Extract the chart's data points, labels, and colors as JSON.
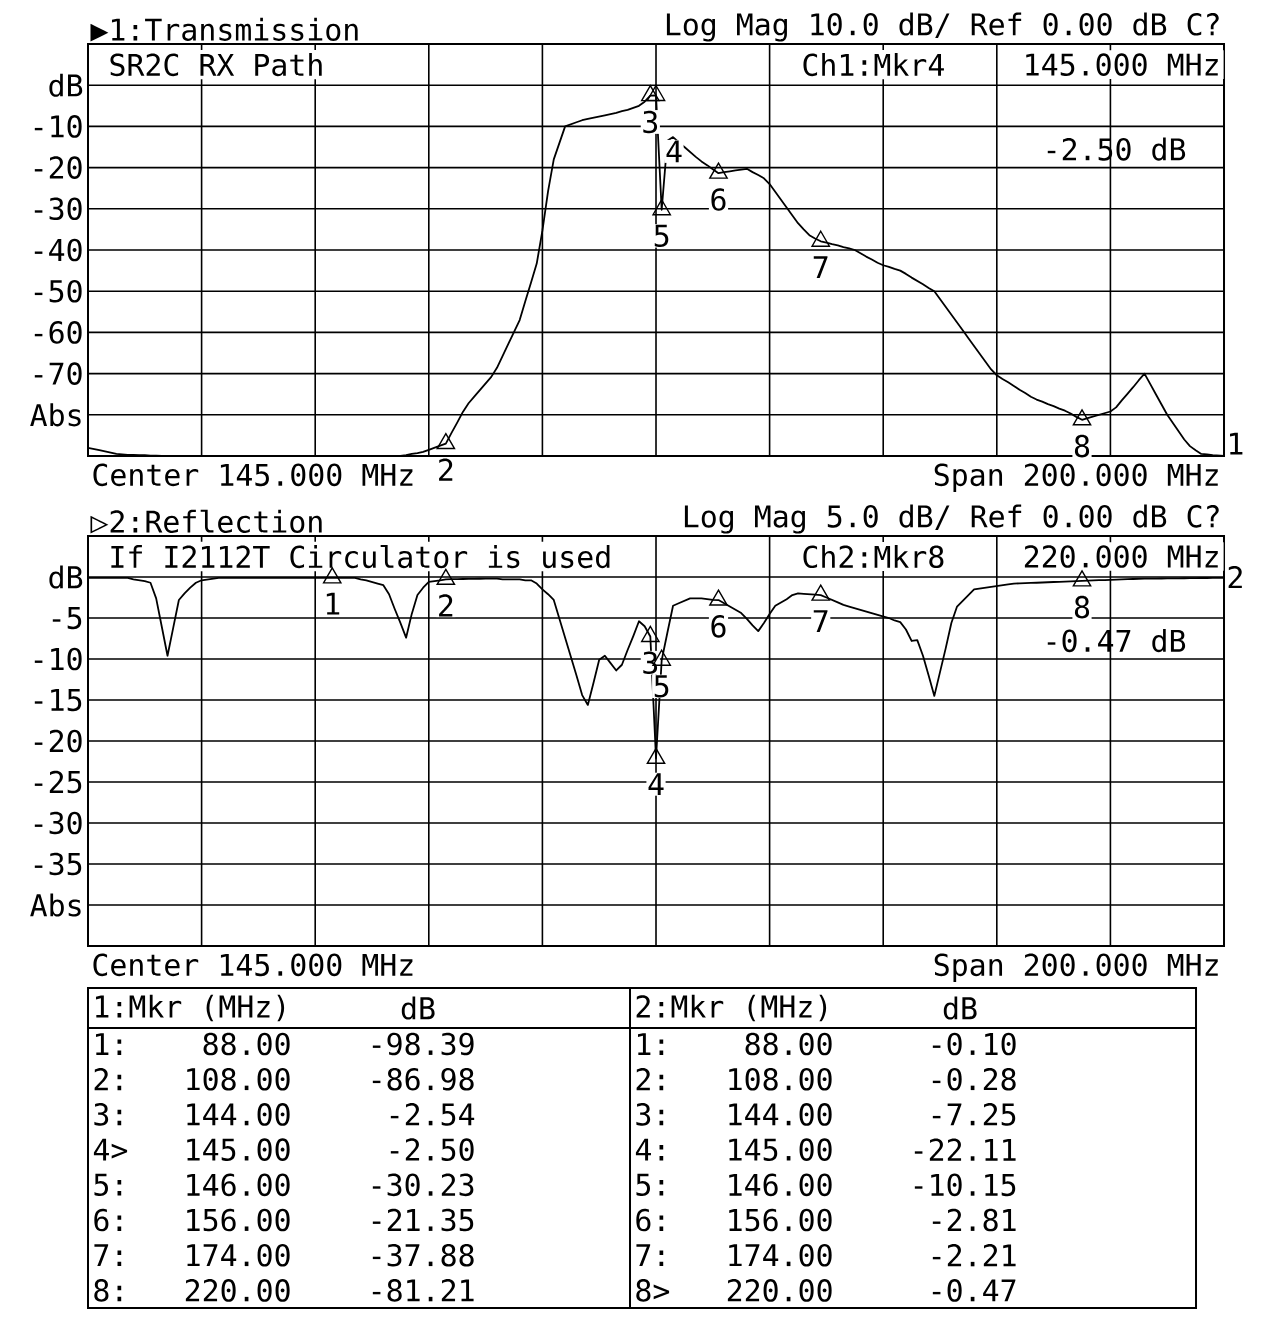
{
  "chart_data": [
    {
      "type": "line",
      "title": "▶1:Transmission",
      "subtitle": "Log Mag  10.0 dB/  Ref  0.00 dB  C?",
      "ylim": [
        -90,
        10
      ],
      "yticks": [
        {
          "value": 10,
          "label": null
        },
        {
          "value": 0,
          "label": "dB"
        },
        {
          "value": -10,
          "label": "-10"
        },
        {
          "value": -20,
          "label": "-20"
        },
        {
          "value": -30,
          "label": "-30"
        },
        {
          "value": -40,
          "label": "-40"
        },
        {
          "value": -50,
          "label": "-50"
        },
        {
          "value": -60,
          "label": "-60"
        },
        {
          "value": -70,
          "label": "-70"
        },
        {
          "value": -80,
          "label": "Abs"
        },
        {
          "value": -90,
          "label": null
        }
      ],
      "tick_labels": "y",
      "grid": true,
      "categories": [
        null,
        null,
        null,
        null,
        null,
        null,
        null,
        null,
        null,
        null,
        null,
        null,
        null,
        null,
        null,
        null,
        null,
        null,
        null,
        null,
        null,
        null,
        null,
        null,
        null,
        null,
        null,
        null,
        null,
        null,
        null,
        null,
        null,
        null,
        null,
        null,
        null,
        null,
        null,
        null,
        null,
        null,
        null,
        null,
        null,
        null,
        null,
        null,
        null,
        null,
        null,
        null,
        null,
        null,
        null,
        null,
        null,
        null,
        null,
        null,
        null,
        null,
        null,
        null,
        null,
        null,
        null,
        null,
        null,
        null,
        null,
        null,
        null,
        null,
        null,
        null,
        null,
        null,
        null,
        null,
        null,
        null,
        null,
        null,
        null,
        null,
        null,
        null,
        null,
        null,
        null,
        null,
        null,
        null,
        null,
        null,
        null,
        null,
        null,
        null,
        null,
        null,
        null,
        null,
        null,
        null,
        null,
        null,
        null,
        null,
        null,
        null,
        null,
        null,
        null,
        null,
        null,
        null,
        null,
        null,
        null,
        null,
        null,
        null,
        null,
        null,
        null,
        null,
        null,
        null,
        null,
        null,
        null,
        null,
        null,
        null,
        null,
        null,
        null,
        null,
        null,
        null,
        null,
        null,
        null,
        null,
        null,
        null,
        null,
        null,
        null,
        null,
        null,
        null,
        null,
        null,
        null,
        null,
        null,
        null,
        null,
        null,
        null,
        null,
        null,
        null,
        null,
        null,
        null,
        null,
        null,
        null,
        null,
        null,
        null,
        null,
        null,
        null,
        null,
        null,
        null,
        null,
        null,
        null,
        null,
        null,
        null,
        null,
        null,
        null,
        null,
        null,
        null,
        null,
        null,
        null,
        null,
        null,
        null,
        null,
        null
      ],
      "series": [
        {
          "color": "#000000",
          "values": [
            -88,
            -88.3,
            -88.6,
            -88.9,
            -89.2,
            -89.5,
            -89.6,
            -89.7,
            -89.7,
            -89.8,
            -89.8,
            -89.9,
            -89.9,
            -90,
            -90,
            -90,
            -90,
            -90,
            -90,
            -90,
            -90,
            -90,
            -90,
            -90,
            -90,
            -90,
            -90,
            -90,
            -90,
            -90,
            -90,
            -90,
            -90,
            -90,
            -90,
            -90,
            -90,
            -90,
            -90,
            -90,
            -90,
            -90,
            -90,
            -90,
            -90,
            -90,
            -90,
            -90,
            -90,
            -90,
            -90,
            -90,
            -90,
            -90,
            -90,
            -90,
            -89.8,
            -89.5,
            -89.3,
            -89,
            -88.5,
            -88,
            -87.5,
            -86.98,
            -84.4,
            -81.9,
            -79.3,
            -77.2,
            -75.6,
            -74,
            -72.4,
            -70.8,
            -68.6,
            -65.7,
            -62.8,
            -59.9,
            -57,
            -52.4,
            -47.9,
            -43.3,
            -35.3,
            -25.7,
            -18,
            -14,
            -10,
            -9.5,
            -9,
            -8.5,
            -8.2,
            -7.9,
            -7.6,
            -7.3,
            -7,
            -6.7,
            -6.3,
            -6,
            -5.5,
            -5,
            -4,
            -2.54,
            -2.5,
            -30.23,
            -13.5,
            -12.6,
            -13.8,
            -15,
            -16.2,
            -17.4,
            -18.5,
            -19.4,
            -20.4,
            -21.35,
            -21.1,
            -20.9,
            -20.7,
            -20.5,
            -20.3,
            -21.1,
            -21.8,
            -22.6,
            -24,
            -25.9,
            -27.8,
            -29.7,
            -31.6,
            -33.5,
            -35,
            -36.4,
            -37.2,
            -37.88,
            -38.2,
            -38.6,
            -38.9,
            -39.3,
            -39.6,
            -40,
            -40.8,
            -41.6,
            -42.3,
            -43.1,
            -43.7,
            -44.1,
            -44.6,
            -45,
            -45.8,
            -46.7,
            -47.5,
            -48.3,
            -49.2,
            -50,
            -51.9,
            -53.8,
            -55.7,
            -57.6,
            -59.5,
            -61.4,
            -63.3,
            -65.2,
            -67.1,
            -69,
            -70.4,
            -71.3,
            -72.1,
            -73,
            -73.9,
            -74.7,
            -75.6,
            -76.3,
            -76.8,
            -77.4,
            -77.9,
            -78.5,
            -79,
            -79.7,
            -80.5,
            -81.21,
            -80.8,
            -80.4,
            -80,
            -79.6,
            -79.2,
            -78.2,
            -76.5,
            -74.9,
            -73.3,
            -71.6,
            -70,
            -72.5,
            -75,
            -77.5,
            -80,
            -82,
            -84,
            -86,
            -87.6,
            -88.6,
            -89.5,
            -89.6,
            -89.8,
            -89.9,
            -90
          ]
        },
        {
          "type": "scatter",
          "marker": "triangle",
          "color": "#000000",
          "values": [
            null,
            null,
            null,
            null,
            null,
            null,
            null,
            null,
            null,
            null,
            null,
            null,
            null,
            null,
            null,
            null,
            null,
            null,
            null,
            null,
            null,
            null,
            null,
            null,
            null,
            null,
            null,
            null,
            null,
            null,
            null,
            null,
            null,
            null,
            null,
            null,
            null,
            null,
            null,
            null,
            null,
            null,
            null,
            null,
            null,
            null,
            null,
            null,
            null,
            null,
            null,
            null,
            null,
            null,
            null,
            null,
            null,
            null,
            null,
            null,
            null,
            null,
            null,
            -86.98,
            null,
            null,
            null,
            null,
            null,
            null,
            null,
            null,
            null,
            null,
            null,
            null,
            null,
            null,
            null,
            null,
            null,
            null,
            null,
            null,
            null,
            null,
            null,
            null,
            null,
            null,
            null,
            null,
            null,
            null,
            null,
            null,
            null,
            null,
            null,
            -2.54,
            -2.5,
            -30.23,
            null,
            null,
            null,
            null,
            null,
            null,
            null,
            null,
            null,
            -21.35,
            null,
            null,
            null,
            null,
            null,
            null,
            null,
            null,
            null,
            null,
            null,
            null,
            null,
            null,
            null,
            null,
            null,
            -37.88,
            null,
            null,
            null,
            null,
            null,
            null,
            null,
            null,
            null,
            null,
            null,
            null,
            null,
            null,
            null,
            null,
            null,
            null,
            null,
            null,
            null,
            null,
            null,
            null,
            null,
            null,
            null,
            null,
            null,
            null,
            null,
            null,
            null,
            null,
            null,
            null,
            null,
            null,
            null,
            null,
            null,
            null,
            null,
            null,
            null,
            -81.21,
            null,
            null,
            null,
            null,
            null,
            null,
            null,
            null,
            null,
            null,
            null,
            null,
            null,
            null,
            null,
            null,
            null,
            null,
            null,
            null,
            null,
            null,
            null,
            null,
            null
          ]
        }
      ],
      "annotations": [
        "SR2C RX Path",
        "Ch1:Mkr4",
        "145.000 MHz",
        "-2.50 dB",
        "Center 145.000 MHz",
        "Span 200.000 MHz",
        "1",
        "2",
        "3",
        "4",
        "5",
        "6",
        "7",
        "8"
      ]
    },
    {
      "type": "line",
      "title": "▷2:Reflection",
      "subtitle": "Log Mag  5.0 dB/  Ref  0.00 dB  C?",
      "ylim": [
        -45,
        5
      ],
      "yticks": [
        {
          "value": 5,
          "label": null
        },
        {
          "value": 0,
          "label": "dB"
        },
        {
          "value": -5,
          "label": "-5"
        },
        {
          "value": -10,
          "label": "-10"
        },
        {
          "value": -15,
          "label": "-15"
        },
        {
          "value": -20,
          "label": "-20"
        },
        {
          "value": -25,
          "label": "-25"
        },
        {
          "value": -30,
          "label": "-30"
        },
        {
          "value": -35,
          "label": "-35"
        },
        {
          "value": -40,
          "label": "Abs"
        },
        {
          "value": -45,
          "label": null
        }
      ],
      "tick_labels": "y",
      "grid": true,
      "categories": [
        null,
        null,
        null,
        null,
        null,
        null,
        null,
        null,
        null,
        null,
        null,
        null,
        null,
        null,
        null,
        null,
        null,
        null,
        null,
        null,
        null,
        null,
        null,
        null,
        null,
        null,
        null,
        null,
        null,
        null,
        null,
        null,
        null,
        null,
        null,
        null,
        null,
        null,
        null,
        null,
        null,
        null,
        null,
        null,
        null,
        null,
        null,
        null,
        null,
        null,
        null,
        null,
        null,
        null,
        null,
        null,
        null,
        null,
        null,
        null,
        null,
        null,
        null,
        null,
        null,
        null,
        null,
        null,
        null,
        null,
        null,
        null,
        null,
        null,
        null,
        null,
        null,
        null,
        null,
        null,
        null,
        null,
        null,
        null,
        null,
        null,
        null,
        null,
        null,
        null,
        null,
        null,
        null,
        null,
        null,
        null,
        null,
        null,
        null,
        null,
        null,
        null,
        null,
        null,
        null,
        null,
        null,
        null,
        null,
        null,
        null,
        null,
        null,
        null,
        null,
        null,
        null,
        null,
        null,
        null,
        null,
        null,
        null,
        null,
        null,
        null,
        null,
        null,
        null,
        null,
        null,
        null,
        null,
        null,
        null,
        null,
        null,
        null,
        null,
        null,
        null,
        null,
        null,
        null,
        null,
        null,
        null,
        null,
        null,
        null,
        null,
        null,
        null,
        null,
        null,
        null,
        null,
        null,
        null,
        null,
        null,
        null,
        null,
        null,
        null,
        null,
        null,
        null,
        null,
        null,
        null,
        null,
        null,
        null,
        null,
        null,
        null,
        null,
        null,
        null,
        null,
        null,
        null,
        null,
        null,
        null,
        null,
        null,
        null,
        null,
        null,
        null,
        null,
        null,
        null,
        null,
        null,
        null,
        null,
        null,
        null
      ],
      "series": [
        {
          "color": "#000000",
          "values": [
            -0.1,
            -0.1,
            -0.1,
            -0.1,
            -0.1,
            -0.1,
            -0.1,
            -0.1,
            -0.3,
            -0.4,
            -0.5,
            -0.7,
            -2.6,
            -6.1,
            -9.6,
            -6.2,
            -2.8,
            -2,
            -1.3,
            -0.7,
            -0.4,
            -0.3,
            -0.2,
            -0.1,
            -0.1,
            -0.1,
            -0.1,
            -0.1,
            -0.1,
            -0.1,
            -0.1,
            -0.1,
            -0.1,
            -0.1,
            -0.1,
            -0.1,
            -0.1,
            -0.1,
            -0.1,
            -0.1,
            -0.1,
            -0.1,
            -0.1,
            -0.1,
            -0.1,
            -0.1,
            -0.1,
            -0.1,
            -0.3,
            -0.4,
            -0.6,
            -0.8,
            -1,
            -2.1,
            -3.9,
            -5.6,
            -7.4,
            -4.5,
            -2.2,
            -1.3,
            -0.6,
            -0.5,
            -0.4,
            -0.28,
            -0.27,
            -0.26,
            -0.24,
            -0.23,
            -0.22,
            -0.21,
            -0.2,
            -0.2,
            -0.2,
            -0.3,
            -0.3,
            -0.3,
            -0.3,
            -0.4,
            -0.4,
            -0.8,
            -1.5,
            -2.1,
            -2.8,
            -5.1,
            -7.4,
            -9.7,
            -12,
            -14.4,
            -15.6,
            -12.9,
            -10.1,
            -9.6,
            -10.5,
            -11.4,
            -10.7,
            -8.9,
            -7.2,
            -5.4,
            -6,
            -7.25,
            -22.11,
            -10.15,
            -6.8,
            -3.5,
            -3.2,
            -2.9,
            -2.6,
            -2.6,
            -2.6,
            -2.7,
            -2.8,
            -2.81,
            -3.2,
            -3.6,
            -4,
            -4.4,
            -5.1,
            -5.9,
            -6.6,
            -5.6,
            -4.5,
            -3.5,
            -3.1,
            -2.7,
            -2.2,
            -2,
            -2.05,
            -2.1,
            -2.15,
            -2.21,
            -2.5,
            -2.8,
            -3.1,
            -3.4,
            -3.6,
            -3.8,
            -4,
            -4.2,
            -4.4,
            -4.6,
            -4.8,
            -5,
            -5.3,
            -5.5,
            -6.4,
            -7.8,
            -7.7,
            -9.6,
            -12,
            -14.5,
            -11.6,
            -8.7,
            -5.6,
            -3.6,
            -2.9,
            -2.2,
            -1.5,
            -1.4,
            -1.3,
            -1.2,
            -1.1,
            -1,
            -0.9,
            -0.8,
            -0.78,
            -0.75,
            -0.72,
            -0.7,
            -0.67,
            -0.64,
            -0.61,
            -0.58,
            -0.55,
            -0.52,
            -0.5,
            -0.47,
            -0.44,
            -0.42,
            -0.39,
            -0.37,
            -0.34,
            -0.32,
            -0.29,
            -0.27,
            -0.24,
            -0.22,
            -0.2,
            -0.2,
            -0.19,
            -0.18,
            -0.17,
            -0.16,
            -0.16,
            -0.15,
            -0.14,
            -0.13,
            -0.12,
            -0.12,
            -0.11,
            -0.1,
            -0.1
          ]
        },
        {
          "type": "scatter",
          "marker": "triangle",
          "color": "#000000",
          "values": [
            null,
            null,
            null,
            null,
            null,
            null,
            null,
            null,
            null,
            null,
            null,
            null,
            null,
            null,
            null,
            null,
            null,
            null,
            null,
            null,
            null,
            null,
            null,
            null,
            null,
            null,
            null,
            null,
            null,
            null,
            null,
            null,
            null,
            null,
            null,
            null,
            null,
            null,
            null,
            null,
            null,
            null,
            null,
            -0.1,
            null,
            null,
            null,
            null,
            null,
            null,
            null,
            null,
            null,
            null,
            null,
            null,
            null,
            null,
            null,
            null,
            null,
            null,
            null,
            -0.28,
            null,
            null,
            null,
            null,
            null,
            null,
            null,
            null,
            null,
            null,
            null,
            null,
            null,
            null,
            null,
            null,
            null,
            null,
            null,
            null,
            null,
            null,
            null,
            null,
            null,
            null,
            null,
            null,
            null,
            null,
            null,
            null,
            null,
            null,
            null,
            -7.25,
            -22.11,
            -10.15,
            null,
            null,
            null,
            null,
            null,
            null,
            null,
            null,
            null,
            -2.81,
            null,
            null,
            null,
            null,
            null,
            null,
            null,
            null,
            null,
            null,
            null,
            null,
            null,
            null,
            null,
            null,
            null,
            -2.21,
            null,
            null,
            null,
            null,
            null,
            null,
            null,
            null,
            null,
            null,
            null,
            null,
            null,
            null,
            null,
            null,
            null,
            null,
            null,
            null,
            null,
            null,
            null,
            null,
            null,
            null,
            null,
            null,
            null,
            null,
            null,
            null,
            null,
            null,
            null,
            null,
            null,
            null,
            null,
            null,
            null,
            null,
            null,
            null,
            null,
            -0.47,
            null,
            null,
            null,
            null,
            null,
            null,
            null,
            null,
            null,
            null,
            null,
            null,
            null,
            null,
            null,
            null,
            null,
            null,
            null,
            null,
            null,
            null,
            null,
            null,
            null
          ]
        }
      ],
      "annotations": [
        "If I2112T Circulator is used",
        "Ch2:Mkr8",
        "220.000 MHz",
        "-0.47 dB",
        "Center 145.000 MHz",
        "Span 200.000 MHz",
        "2",
        "1",
        "2",
        "3",
        "4",
        "5",
        "6",
        "7",
        "8"
      ]
    },
    {
      "type": "other",
      "annotations": [
        "1:Mkr (MHz)",
        "dB",
        "1:",
        "88.00",
        "-98.39",
        "2:",
        "108.00",
        "-86.98",
        "3:",
        "144.00",
        "-2.54",
        "4>",
        "145.00",
        "-2.50",
        "5:",
        "146.00",
        "-30.23",
        "6:",
        "156.00",
        "-21.35",
        "7:",
        "174.00",
        "-37.88",
        "8:",
        "220.00",
        "-81.21",
        "2:Mkr (MHz)",
        "dB",
        "1:",
        "88.00",
        "-0.10",
        "2:",
        "108.00",
        "-0.28",
        "3:",
        "144.00",
        "-7.25",
        "4:",
        "145.00",
        "-22.11",
        "5:",
        "146.00",
        "-10.15",
        "6:",
        "156.00",
        "-2.81",
        "7:",
        "174.00",
        "-2.21",
        "8>",
        "220.00",
        "-0.47"
      ]
    }
  ]
}
